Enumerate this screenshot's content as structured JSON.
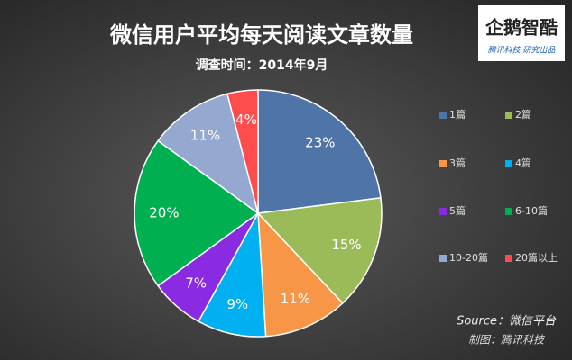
{
  "chart_data": {
    "type": "pie",
    "title": "微信用户平均每天阅读文章数量",
    "subtitle": "调查时间：2014年9月",
    "categories": [
      "1篇",
      "2篇",
      "3篇",
      "4篇",
      "5篇",
      "6-10篇",
      "10-20篇",
      "20篇以上"
    ],
    "values": [
      23,
      15,
      11,
      9,
      7,
      20,
      11,
      4
    ],
    "value_labels": [
      "23%",
      "15%",
      "11%",
      "9%",
      "7%",
      "20%",
      "11%",
      "4%"
    ],
    "colors": [
      "#4f74a8",
      "#9bbb59",
      "#f79646",
      "#00b0f0",
      "#8a2be2",
      "#00b050",
      "#95a9d0",
      "#ff4d4d"
    ],
    "legend": "right",
    "source": "Source：微信平台",
    "credit": "制图：腾讯科技",
    "logo": {
      "name": "企鹅智酷",
      "tagline": "腾讯科技 研究出品"
    }
  }
}
